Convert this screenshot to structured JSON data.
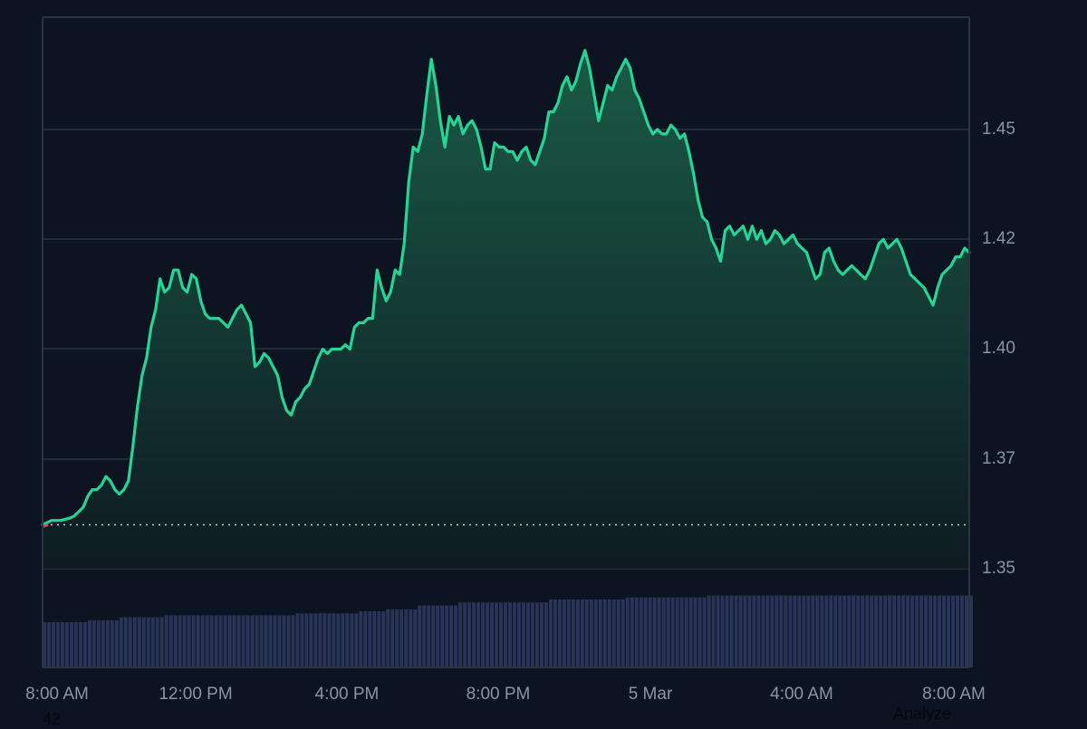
{
  "chart_data": {
    "type": "area",
    "title": "",
    "xlabel": "",
    "ylabel": "",
    "ylim": [
      1.34,
      1.475
    ],
    "baseline": 1.36,
    "colors": {
      "line": "#26d494",
      "fill_top": "#1b5e48",
      "fill_bottom": "#0e1c22",
      "baseline_start": "#e0436a",
      "volume": "#2a3358",
      "grid": "#2a3441",
      "background": "#0c1421"
    },
    "x_ticks": [
      "8:00 AM",
      "12:00 PM",
      "4:00 PM",
      "8:00 PM",
      "5 Mar",
      "4:00 AM",
      "8:00 AM"
    ],
    "y_ticks": [
      "1.45",
      "1.42",
      "1.40",
      "1.37",
      "1.35"
    ],
    "series": [
      {
        "name": "price",
        "points": [
          [
            0,
            1.36
          ],
          [
            2,
            1.361
          ],
          [
            4,
            1.361
          ],
          [
            6,
            1.3615
          ],
          [
            7,
            1.362
          ],
          [
            8,
            1.363
          ],
          [
            9,
            1.364
          ],
          [
            10,
            1.3665
          ],
          [
            11,
            1.368
          ],
          [
            12,
            1.368
          ],
          [
            13,
            1.369
          ],
          [
            14,
            1.371
          ],
          [
            15,
            1.37
          ],
          [
            16,
            1.368
          ],
          [
            17,
            1.367
          ],
          [
            18,
            1.368
          ],
          [
            19,
            1.37
          ],
          [
            20,
            1.378
          ],
          [
            21,
            1.387
          ],
          [
            22,
            1.394
          ],
          [
            23,
            1.398
          ],
          [
            24,
            1.405
          ],
          [
            25,
            1.409
          ],
          [
            26,
            1.416
          ],
          [
            27,
            1.413
          ],
          [
            28,
            1.414
          ],
          [
            29,
            1.418
          ],
          [
            30,
            1.418
          ],
          [
            31,
            1.414
          ],
          [
            32,
            1.413
          ],
          [
            33,
            1.417
          ],
          [
            34,
            1.416
          ],
          [
            35,
            1.411
          ],
          [
            36,
            1.408
          ],
          [
            37,
            1.407
          ],
          [
            38,
            1.407
          ],
          [
            39,
            1.407
          ],
          [
            40,
            1.406
          ],
          [
            41,
            1.405
          ],
          [
            42,
            1.407
          ],
          [
            43,
            1.409
          ],
          [
            44,
            1.41
          ],
          [
            45,
            1.408
          ],
          [
            46,
            1.406
          ],
          [
            47,
            1.396
          ],
          [
            48,
            1.397
          ],
          [
            49,
            1.399
          ],
          [
            50,
            1.398
          ],
          [
            51,
            1.396
          ],
          [
            52,
            1.394
          ],
          [
            53,
            1.389
          ],
          [
            54,
            1.386
          ],
          [
            55,
            1.385
          ],
          [
            56,
            1.388
          ],
          [
            57,
            1.389
          ],
          [
            58,
            1.391
          ],
          [
            59,
            1.392
          ],
          [
            60,
            1.395
          ],
          [
            61,
            1.398
          ],
          [
            62,
            1.4
          ],
          [
            63,
            1.399
          ],
          [
            64,
            1.4
          ],
          [
            65,
            1.4
          ],
          [
            66,
            1.4
          ],
          [
            67,
            1.401
          ],
          [
            68,
            1.4
          ],
          [
            69,
            1.405
          ],
          [
            70,
            1.406
          ],
          [
            71,
            1.406
          ],
          [
            72,
            1.407
          ],
          [
            73,
            1.407
          ],
          [
            74,
            1.418
          ],
          [
            75,
            1.414
          ],
          [
            76,
            1.411
          ],
          [
            77,
            1.413
          ],
          [
            78,
            1.418
          ],
          [
            79,
            1.417
          ],
          [
            80,
            1.424
          ],
          [
            81,
            1.438
          ],
          [
            82,
            1.446
          ],
          [
            83,
            1.445
          ],
          [
            84,
            1.449
          ],
          [
            85,
            1.458
          ],
          [
            86,
            1.466
          ],
          [
            87,
            1.46
          ],
          [
            88,
            1.452
          ],
          [
            89,
            1.446
          ],
          [
            90,
            1.453
          ],
          [
            91,
            1.451
          ],
          [
            92,
            1.453
          ],
          [
            93,
            1.449
          ],
          [
            94,
            1.451
          ],
          [
            95,
            1.452
          ],
          [
            96,
            1.45
          ],
          [
            97,
            1.446
          ],
          [
            98,
            1.441
          ],
          [
            99,
            1.441
          ],
          [
            100,
            1.447
          ],
          [
            101,
            1.446
          ],
          [
            102,
            1.446
          ],
          [
            103,
            1.445
          ],
          [
            104,
            1.445
          ],
          [
            105,
            1.443
          ],
          [
            106,
            1.445
          ],
          [
            107,
            1.446
          ],
          [
            108,
            1.443
          ],
          [
            109,
            1.442
          ],
          [
            110,
            1.445
          ],
          [
            111,
            1.448
          ],
          [
            112,
            1.454
          ],
          [
            113,
            1.454
          ],
          [
            114,
            1.456
          ],
          [
            115,
            1.46
          ],
          [
            116,
            1.462
          ],
          [
            117,
            1.459
          ],
          [
            118,
            1.461
          ],
          [
            119,
            1.465
          ],
          [
            120,
            1.468
          ],
          [
            121,
            1.464
          ],
          [
            122,
            1.458
          ],
          [
            123,
            1.452
          ],
          [
            124,
            1.456
          ],
          [
            125,
            1.46
          ],
          [
            126,
            1.459
          ],
          [
            127,
            1.462
          ],
          [
            128,
            1.464
          ],
          [
            129,
            1.466
          ],
          [
            130,
            1.464
          ],
          [
            131,
            1.459
          ],
          [
            132,
            1.457
          ],
          [
            133,
            1.454
          ],
          [
            134,
            1.451
          ],
          [
            135,
            1.449
          ],
          [
            136,
            1.45
          ],
          [
            137,
            1.449
          ],
          [
            138,
            1.449
          ],
          [
            139,
            1.451
          ],
          [
            140,
            1.45
          ],
          [
            141,
            1.448
          ],
          [
            142,
            1.449
          ],
          [
            143,
            1.445
          ],
          [
            144,
            1.44
          ],
          [
            145,
            1.434
          ],
          [
            146,
            1.43
          ],
          [
            147,
            1.429
          ],
          [
            148,
            1.425
          ],
          [
            149,
            1.423
          ],
          [
            150,
            1.42
          ],
          [
            151,
            1.427
          ],
          [
            152,
            1.428
          ],
          [
            153,
            1.426
          ],
          [
            154,
            1.427
          ],
          [
            155,
            1.428
          ],
          [
            156,
            1.425
          ],
          [
            157,
            1.428
          ],
          [
            158,
            1.425
          ],
          [
            159,
            1.427
          ],
          [
            160,
            1.424
          ],
          [
            161,
            1.425
          ],
          [
            162,
            1.427
          ],
          [
            163,
            1.426
          ],
          [
            164,
            1.424
          ],
          [
            165,
            1.425
          ],
          [
            166,
            1.426
          ],
          [
            167,
            1.424
          ],
          [
            168,
            1.423
          ],
          [
            169,
            1.422
          ],
          [
            170,
            1.419
          ],
          [
            171,
            1.416
          ],
          [
            172,
            1.417
          ],
          [
            173,
            1.422
          ],
          [
            174,
            1.423
          ],
          [
            175,
            1.42
          ],
          [
            176,
            1.418
          ],
          [
            177,
            1.417
          ],
          [
            178,
            1.418
          ],
          [
            179,
            1.419
          ],
          [
            180,
            1.418
          ],
          [
            181,
            1.417
          ],
          [
            182,
            1.416
          ],
          [
            183,
            1.418
          ],
          [
            184,
            1.421
          ],
          [
            185,
            1.424
          ],
          [
            186,
            1.425
          ],
          [
            187,
            1.423
          ],
          [
            188,
            1.424
          ],
          [
            189,
            1.425
          ],
          [
            190,
            1.423
          ],
          [
            191,
            1.42
          ],
          [
            192,
            1.417
          ],
          [
            193,
            1.416
          ],
          [
            194,
            1.415
          ],
          [
            195,
            1.414
          ],
          [
            196,
            1.412
          ],
          [
            197,
            1.41
          ],
          [
            198,
            1.414
          ],
          [
            199,
            1.417
          ],
          [
            200,
            1.418
          ],
          [
            201,
            1.419
          ],
          [
            202,
            1.421
          ],
          [
            203,
            1.421
          ],
          [
            204,
            1.423
          ],
          [
            205,
            1.422
          ]
        ]
      },
      {
        "name": "volume",
        "segments": [
          [
            0,
            0.55
          ],
          [
            10,
            0.57
          ],
          [
            17,
            0.6
          ],
          [
            27,
            0.62
          ],
          [
            56,
            0.64
          ],
          [
            70,
            0.66
          ],
          [
            76,
            0.68
          ],
          [
            83,
            0.72
          ],
          [
            92,
            0.75
          ],
          [
            112,
            0.78
          ],
          [
            129,
            0.8
          ],
          [
            147,
            0.82
          ],
          [
            205,
            0.82
          ]
        ]
      }
    ],
    "x_range": [
      0,
      205
    ],
    "grid": true
  },
  "overlay": {
    "bottom_left_label": "42",
    "bottom_right_label": "Analyze"
  }
}
